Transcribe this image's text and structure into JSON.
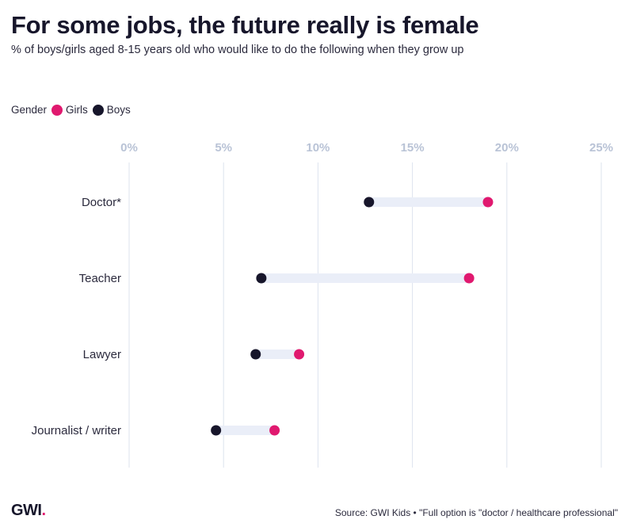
{
  "header": {
    "title": "For some jobs, the future really is female",
    "subtitle": "% of boys/girls aged 8-15 years old who would like to do the following when they grow up"
  },
  "legend": {
    "title": "Gender",
    "items": [
      {
        "label": "Girls",
        "color": "#e0196f"
      },
      {
        "label": "Boys",
        "color": "#17162b"
      }
    ]
  },
  "chart_data": {
    "type": "dumbbell",
    "title": "For some jobs, the future really is female",
    "xlabel": "",
    "ylabel": "",
    "xlim": [
      0,
      25
    ],
    "x_ticks": [
      0,
      5,
      10,
      15,
      20,
      25
    ],
    "x_tick_labels": [
      "0%",
      "5%",
      "10%",
      "15%",
      "20%",
      "25%"
    ],
    "categories": [
      "Doctor*",
      "Teacher",
      "Lawyer",
      "Journalist / writer"
    ],
    "series": [
      {
        "name": "Girls",
        "color": "#e0196f",
        "values": [
          19.0,
          18.0,
          9.0,
          7.7
        ]
      },
      {
        "name": "Boys",
        "color": "#17162b",
        "values": [
          12.7,
          7.0,
          6.7,
          4.6
        ]
      }
    ],
    "connector_color": "#eaeef8",
    "grid": true,
    "legend_position": "top-left"
  },
  "footer": {
    "logo_text": "GWI",
    "logo_dot": ".",
    "source": "Source: GWI Kids • \"Full option is \"doctor / healthcare professional\""
  }
}
